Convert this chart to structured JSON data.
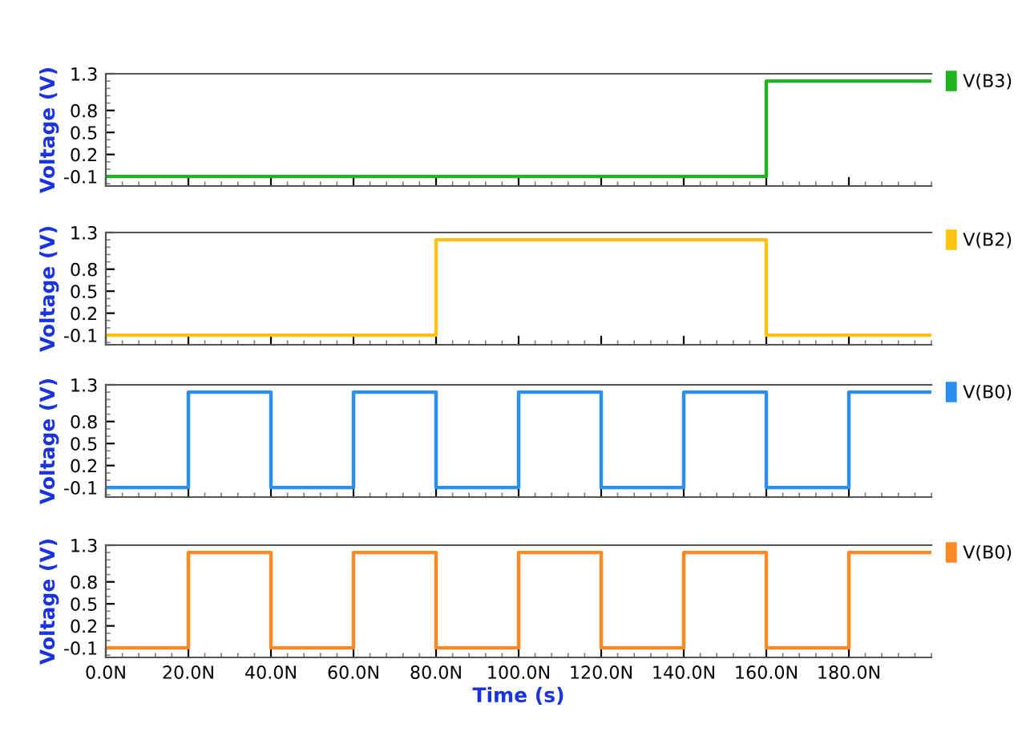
{
  "chart_data": [
    {
      "type": "step",
      "ylabel": "Voltage (V)",
      "xlim": [
        0,
        200
      ],
      "ylim": [
        -0.23,
        1.3
      ],
      "yticks": [
        -0.1,
        0.2,
        0.5,
        0.8,
        1.3
      ],
      "xticks": [
        0,
        20,
        40,
        60,
        80,
        100,
        120,
        140,
        160,
        180
      ],
      "tick_labels": "y",
      "legend": "right",
      "x": [
        0,
        160,
        200
      ],
      "series": [
        {
          "name": "V(B3)",
          "color": "#1fb41f",
          "values": [
            -0.1,
            1.2,
            1.2
          ]
        }
      ]
    },
    {
      "type": "step",
      "ylabel": "Voltage (V)",
      "xlim": [
        0,
        200
      ],
      "ylim": [
        -0.23,
        1.3
      ],
      "yticks": [
        -0.1,
        0.2,
        0.5,
        0.8,
        1.3
      ],
      "xticks": [
        0,
        20,
        40,
        60,
        80,
        100,
        120,
        140,
        160,
        180
      ],
      "tick_labels": "y",
      "legend": "right",
      "x": [
        0,
        80,
        160,
        200
      ],
      "series": [
        {
          "name": "V(B2)",
          "color": "#ffc20e",
          "values": [
            -0.1,
            1.2,
            -0.1,
            -0.1
          ]
        }
      ]
    },
    {
      "type": "step",
      "ylabel": "Voltage (V)",
      "xlim": [
        0,
        200
      ],
      "ylim": [
        -0.23,
        1.3
      ],
      "yticks": [
        -0.1,
        0.2,
        0.5,
        0.8,
        1.3
      ],
      "xticks": [
        0,
        20,
        40,
        60,
        80,
        100,
        120,
        140,
        160,
        180
      ],
      "tick_labels": "y",
      "legend": "right",
      "x": [
        0,
        20,
        40,
        60,
        80,
        100,
        120,
        140,
        160,
        180,
        200
      ],
      "series": [
        {
          "name": "V(B0)",
          "color": "#2b8ff0",
          "values": [
            -0.1,
            1.2,
            -0.1,
            1.2,
            -0.1,
            1.2,
            -0.1,
            1.2,
            -0.1,
            1.2,
            1.2
          ]
        }
      ]
    },
    {
      "type": "step",
      "ylabel": "Voltage (V)",
      "xlabel": "Time (s)",
      "xlim": [
        0,
        200
      ],
      "ylim": [
        -0.23,
        1.3
      ],
      "yticks": [
        -0.1,
        0.2,
        0.5,
        0.8,
        1.3
      ],
      "xticks": [
        {
          "value": 0,
          "label": "0.0N"
        },
        {
          "value": 20,
          "label": "20.0N"
        },
        {
          "value": 40,
          "label": "40.0N"
        },
        {
          "value": 60,
          "label": "60.0N"
        },
        {
          "value": 80,
          "label": "80.0N"
        },
        {
          "value": 100,
          "label": "100.0N"
        },
        {
          "value": 120,
          "label": "120.0N"
        },
        {
          "value": 140,
          "label": "140.0N"
        },
        {
          "value": 160,
          "label": "160.0N"
        },
        {
          "value": 180,
          "label": "180.0N"
        }
      ],
      "legend": "right",
      "x": [
        0,
        20,
        40,
        60,
        80,
        100,
        120,
        140,
        160,
        180,
        200
      ],
      "series": [
        {
          "name": "V(B0)",
          "color": "#fb8a24",
          "values": [
            -0.1,
            1.2,
            -0.1,
            1.2,
            -0.1,
            1.2,
            -0.1,
            1.2,
            -0.1,
            1.2,
            1.2
          ]
        }
      ]
    }
  ]
}
